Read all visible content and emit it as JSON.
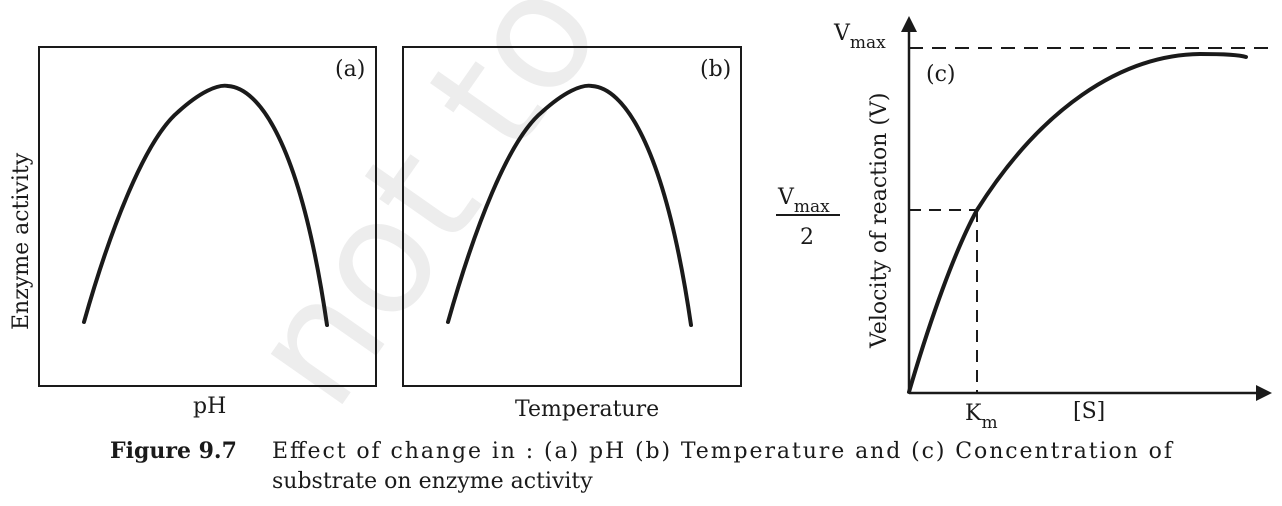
{
  "watermark": "not to be",
  "panels": [
    {
      "tag": "(a)",
      "xlabel": "pH"
    },
    {
      "tag": "(b)",
      "xlabel": "Temperature"
    },
    {
      "tag": "(c)",
      "xlabel": "[S]"
    }
  ],
  "shared_ylabel": "Enzyme activity",
  "panel_c": {
    "ylabel": "Velocity of reaction (V)",
    "vmax_main": "V",
    "vmax_sub": "max",
    "half_num_main": "V",
    "half_num_sub": "max",
    "half_den": "2",
    "km_main": "K",
    "km_sub": "m"
  },
  "caption": {
    "label": "Figure 9.7",
    "line1": "Effect of change in : (a) pH  (b) Temperature and (c) Concentration of",
    "line2": "substrate on enzyme activity"
  },
  "colors": {
    "ink": "#1a1a1a",
    "watermark": "#ededed"
  }
}
